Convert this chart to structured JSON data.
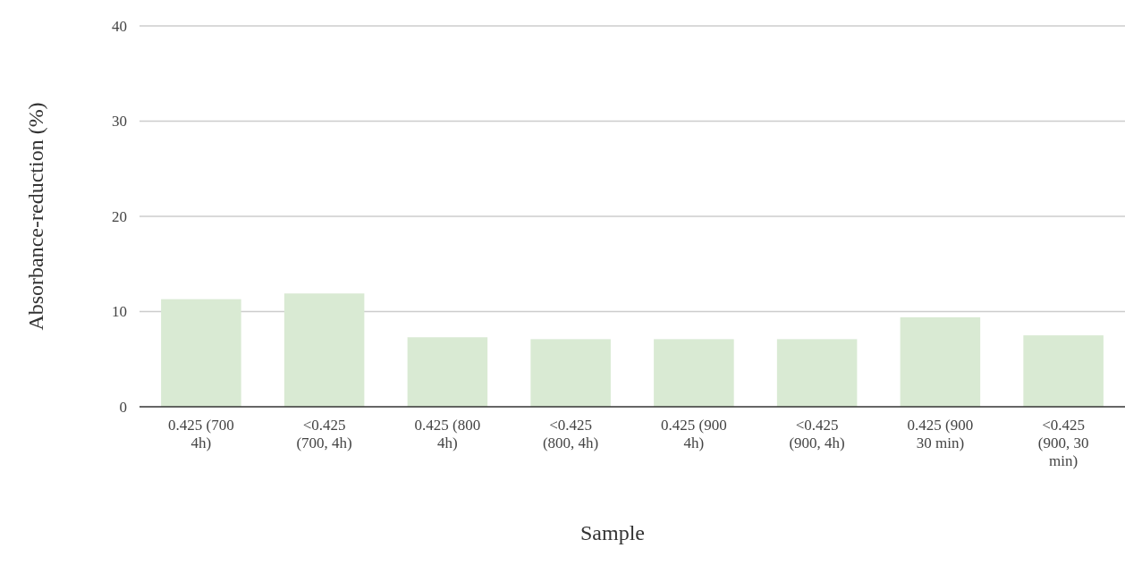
{
  "chart_data": {
    "type": "bar",
    "xlabel": "Sample",
    "ylabel": "Absorbance-reduction (%)",
    "categories": [
      "0.425 (700 4h)",
      "<0.425 (700, 4h)",
      "0.425 (800 4h)",
      "<0.425 (800, 4h)",
      "0.425 (900 4h)",
      "<0.425 (900, 4h)",
      "0.425 (900 30 min)",
      "<0.425 (900, 30 min)"
    ],
    "values": [
      11.3,
      11.9,
      7.3,
      7.1,
      7.1,
      7.1,
      9.4,
      7.5
    ],
    "color": "#d9ead3",
    "ylim": [
      0,
      40
    ],
    "yticks": [
      0,
      10,
      20,
      30,
      40
    ],
    "grid": "y"
  }
}
